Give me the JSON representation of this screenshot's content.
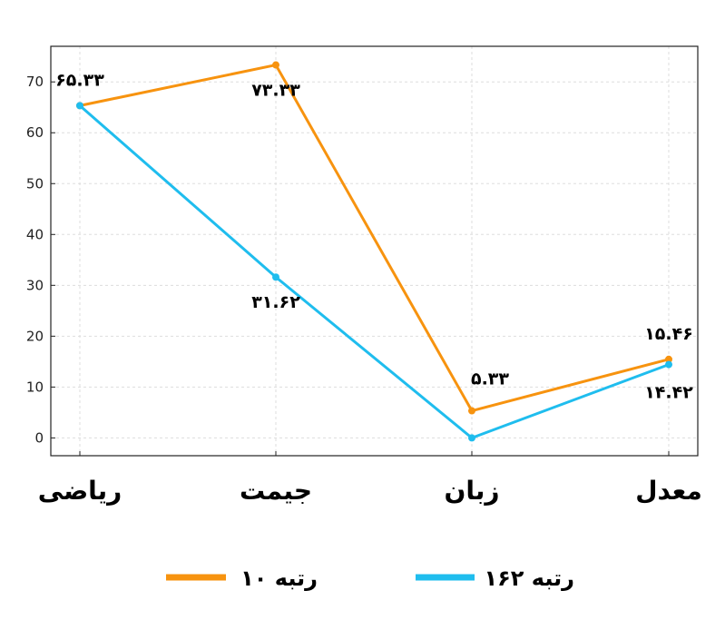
{
  "chart_data": {
    "type": "line",
    "categories": [
      "ریاضی",
      "جیمت",
      "زبان",
      "معدل"
    ],
    "ylim": [
      -3.5,
      77
    ],
    "yticks": [
      0,
      10,
      20,
      30,
      40,
      50,
      60,
      70
    ],
    "grid": true,
    "legend_position": "bottom",
    "series": [
      {
        "name": "رتبه ۱۰",
        "color": "#f7930f",
        "values": [
          65.33,
          73.33,
          5.33,
          15.46
        ],
        "labels": [
          "۶۵.۳۳",
          "۷۳.۳۳",
          "۵.۳۳",
          "۱۵.۴۶"
        ]
      },
      {
        "name": "رتبه ۱۶۲",
        "color": "#1fbdee",
        "values": [
          65.33,
          31.62,
          0,
          14.42
        ],
        "labels": [
          "",
          "۳۱.۶۲",
          "",
          "۱۴.۴۲"
        ]
      }
    ]
  }
}
